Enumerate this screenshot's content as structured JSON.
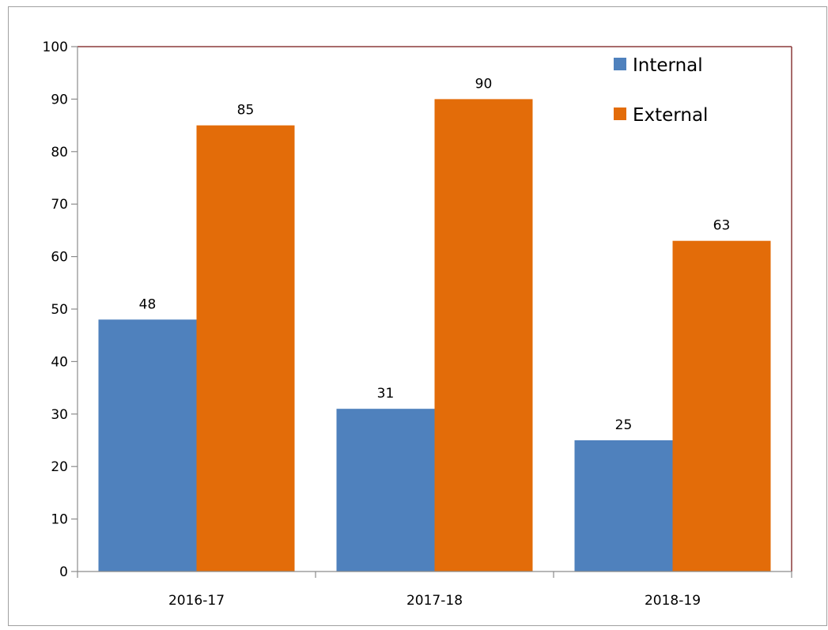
{
  "chart_data": {
    "type": "bar",
    "title": "",
    "xlabel": "",
    "ylabel": "",
    "categories": [
      "2016-17",
      "2017-18",
      "2018-19"
    ],
    "series": [
      {
        "name": "Internal",
        "values": [
          48,
          31,
          25
        ],
        "color": "#4f81bd"
      },
      {
        "name": "External",
        "values": [
          85,
          90,
          63
        ],
        "color": "#e36c09"
      }
    ],
    "ylim": [
      0,
      100
    ],
    "yticks": [
      0,
      10,
      20,
      30,
      40,
      50,
      60,
      70,
      80,
      90,
      100
    ],
    "grid": false,
    "legend": "top-right",
    "data_labels": true,
    "plot_border_color": "#8b3a3a"
  }
}
